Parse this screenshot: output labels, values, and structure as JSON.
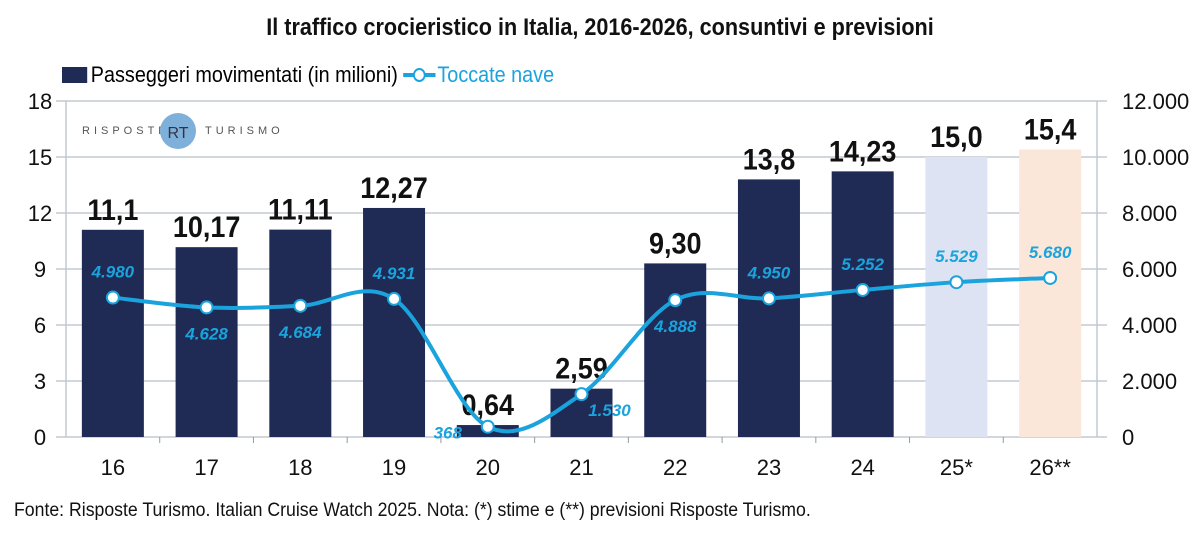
{
  "chart_data": {
    "type": "bar",
    "title": "Il traffico crocieristico in Italia, 2016-2026, consuntivi e previsioni",
    "categories": [
      "16",
      "17",
      "18",
      "19",
      "20",
      "21",
      "22",
      "23",
      "24",
      "25*",
      "26**"
    ],
    "series": [
      {
        "name": "Passeggeri movimentati (in milioni)",
        "type": "bar",
        "axis": "left",
        "values": [
          11.1,
          10.17,
          11.11,
          12.27,
          0.64,
          2.59,
          9.3,
          13.8,
          14.23,
          15.0,
          15.4
        ],
        "labels": [
          "11,1",
          "10,17",
          "11,11",
          "12,27",
          "0,64",
          "2,59",
          "9,30",
          "13,8",
          "14,23",
          "15,0",
          "15,4"
        ],
        "colors": [
          "#1f2a55",
          "#1f2a55",
          "#1f2a55",
          "#1f2a55",
          "#1f2a55",
          "#1f2a55",
          "#1f2a55",
          "#1f2a55",
          "#1f2a55",
          "#dde3f3",
          "#fbe7da"
        ]
      },
      {
        "name": "Toccate nave",
        "type": "line",
        "axis": "right",
        "color": "#1aa3dc",
        "values": [
          4980,
          4628,
          4684,
          4931,
          368,
          1530,
          4888,
          4950,
          5252,
          5529,
          5680
        ],
        "labels": [
          "4.980",
          "4.628",
          "4.684",
          "4.931",
          "368",
          "1.530",
          "4.888",
          "4.950",
          "5.252",
          "5.529",
          "5.680"
        ]
      }
    ],
    "ylim_left": [
      0,
      18
    ],
    "yticks_left": [
      "0",
      "3",
      "6",
      "9",
      "12",
      "15",
      "18"
    ],
    "ylim_right": [
      0,
      12000
    ],
    "yticks_right": [
      "0",
      "2.000",
      "4.000",
      "6.000",
      "8.000",
      "10.000",
      "12.000"
    ],
    "grid": true,
    "legend": "top-left"
  },
  "logo_text": "RISPOSTE TURISMO",
  "source": "Fonte: Risposte Turismo. Italian Cruise Watch 2025. Nota: (*) stime e (**) previsioni Risposte Turismo."
}
